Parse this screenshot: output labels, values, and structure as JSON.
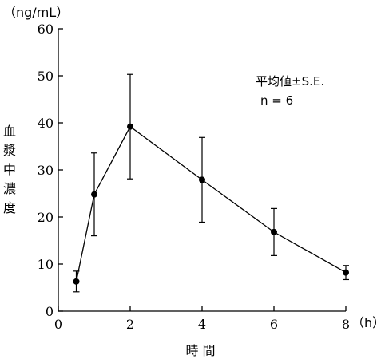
{
  "chart_data": {
    "type": "line",
    "x": [
      0.5,
      1,
      2,
      4,
      6,
      8
    ],
    "series": [
      {
        "values": [
          6.3,
          24.8,
          39.2,
          27.9,
          16.8,
          8.2
        ],
        "error": [
          2.2,
          8.8,
          11.1,
          9.0,
          5.0,
          1.5
        ]
      }
    ],
    "ylabel": "血\n漿\n中\n濃\n度",
    "yunit": "（ng/mL）",
    "xlabel": "時 間",
    "xunit": "（h）",
    "xlim": [
      0,
      8
    ],
    "ylim": [
      0,
      60
    ],
    "xticks": [
      "0",
      "2",
      "4",
      "6",
      "8"
    ],
    "yticks": [
      "0",
      "10",
      "20",
      "30",
      "40",
      "50",
      "60"
    ],
    "annotations": [
      "平均値±S.E.",
      "n = 6"
    ],
    "grid": false
  }
}
